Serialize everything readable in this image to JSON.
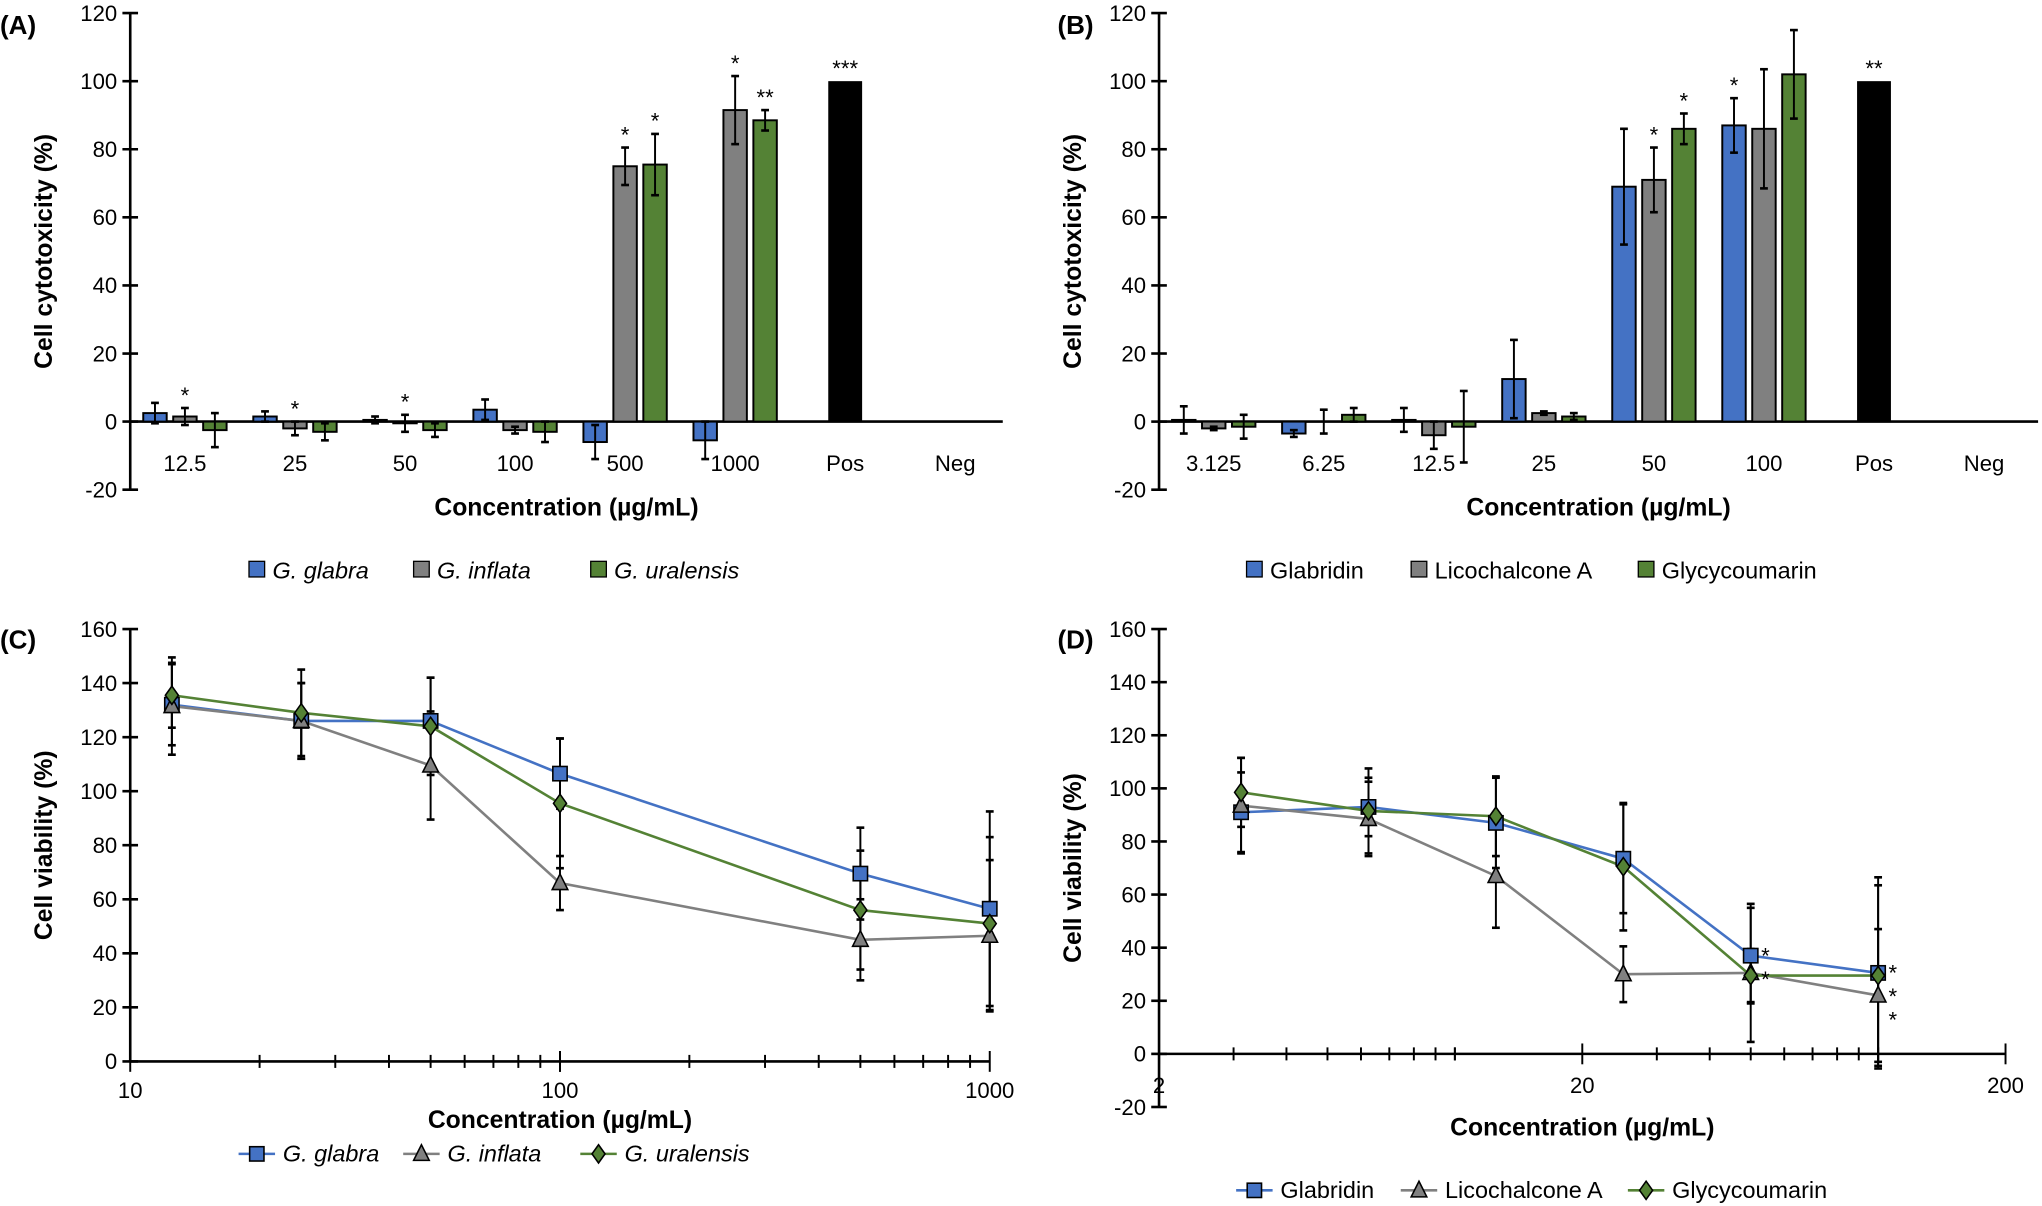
{
  "colors": {
    "blue": "#4472C4",
    "gray": "#808080",
    "green": "#548235",
    "black": "#000000"
  },
  "chart_data": [
    {
      "panel": "(A)",
      "type": "bar",
      "ylabel": "Cell cytotoxicity (%)",
      "xlabel": "Concentration (µg/mL)",
      "ylim": [
        -20,
        120
      ],
      "yticks": [
        -20,
        0,
        20,
        40,
        60,
        80,
        100,
        120
      ],
      "categories": [
        "12.5",
        "25",
        "50",
        "100",
        "500",
        "1000",
        "Pos",
        "Neg"
      ],
      "series": [
        {
          "name": "G. glabra",
          "italic": true,
          "color": "#4472C4",
          "values": [
            2.5,
            1.5,
            0.5,
            3.5,
            -6,
            -5.5,
            null,
            null
          ],
          "errors": [
            3,
            1.5,
            1,
            3,
            5,
            5.5,
            null,
            null
          ],
          "stars": [
            "",
            "",
            "",
            "",
            "",
            "",
            "",
            ""
          ]
        },
        {
          "name": "G. inflata",
          "italic": true,
          "color": "#808080",
          "values": [
            1.5,
            -2,
            -0.5,
            -2.5,
            75,
            91.5,
            null,
            null
          ],
          "errors": [
            2.5,
            2,
            2.5,
            1,
            5.5,
            10,
            null,
            null
          ],
          "stars": [
            "*",
            "*",
            "*",
            "",
            "*",
            "*",
            "",
            ""
          ]
        },
        {
          "name": "G. uralensis",
          "italic": true,
          "color": "#548235",
          "values": [
            -2.5,
            -3,
            -2.5,
            -3,
            75.5,
            88.5,
            null,
            null
          ],
          "errors": [
            5,
            2.5,
            2,
            3,
            9,
            3,
            null,
            null
          ],
          "stars": [
            "",
            "",
            "",
            "",
            "*",
            "**",
            "",
            ""
          ]
        }
      ],
      "positive": {
        "value": 100,
        "color": "#000000",
        "stars": "***"
      }
    },
    {
      "panel": "(B)",
      "type": "bar",
      "ylabel": "Cell cytotoxicity (%)",
      "xlabel": "Concentration (µg/mL)",
      "ylim": [
        -20,
        120
      ],
      "yticks": [
        -20,
        0,
        20,
        40,
        60,
        80,
        100,
        120
      ],
      "categories": [
        "3.125",
        "6.25",
        "12.5",
        "25",
        "50",
        "100",
        "Pos",
        "Neg"
      ],
      "series": [
        {
          "name": "Glabridin",
          "italic": false,
          "color": "#4472C4",
          "values": [
            0.5,
            -3.5,
            0.5,
            12.5,
            69,
            87,
            null,
            null
          ],
          "errors": [
            4,
            1,
            3.5,
            11.5,
            17,
            8,
            null,
            null
          ],
          "stars": [
            "",
            "",
            "",
            "",
            "",
            "*",
            "",
            ""
          ]
        },
        {
          "name": "Licochalcone A",
          "italic": false,
          "color": "#808080",
          "values": [
            -2,
            0,
            -4,
            2.5,
            71,
            86,
            null,
            null
          ],
          "errors": [
            0.5,
            3.5,
            4,
            0.5,
            9.5,
            17.5,
            null,
            null
          ],
          "stars": [
            "",
            "",
            "",
            "",
            "*",
            "",
            "",
            ""
          ]
        },
        {
          "name": "Glycycoumarin",
          "italic": false,
          "color": "#548235",
          "values": [
            -1.5,
            2,
            -1.5,
            1.5,
            86,
            102,
            null,
            null
          ],
          "errors": [
            3.5,
            2,
            10.5,
            1,
            4.5,
            13,
            null,
            null
          ],
          "stars": [
            "",
            "",
            "",
            "",
            "*",
            "",
            "",
            ""
          ]
        }
      ],
      "positive": {
        "value": 100,
        "color": "#000000",
        "stars": "**"
      }
    },
    {
      "panel": "(C)",
      "type": "line",
      "xscale": "log",
      "ylabel": "Cell viability (%)",
      "xlabel": "Concentration (µg/mL)",
      "xlim": [
        10,
        1000
      ],
      "xticks": [
        "10",
        "100",
        "1000"
      ],
      "ylim": [
        0,
        160
      ],
      "yticks": [
        0,
        20,
        40,
        60,
        80,
        100,
        120,
        140,
        160
      ],
      "x": [
        12.5,
        25,
        50,
        100,
        500,
        1000
      ],
      "series": [
        {
          "name": "G. glabra",
          "italic": true,
          "color": "#4472C4",
          "marker": "square",
          "values": [
            132,
            126,
            126,
            106.5,
            69.5,
            56.5
          ],
          "errors": [
            15,
            14,
            16,
            13,
            17,
            36
          ],
          "stars": [
            "",
            "",
            "",
            "",
            "",
            ""
          ]
        },
        {
          "name": "G. inflata",
          "italic": true,
          "color": "#808080",
          "marker": "triangle",
          "values": [
            131.5,
            126,
            109.5,
            66,
            45,
            46.5
          ],
          "errors": [
            18,
            14,
            20,
            10,
            15,
            28
          ],
          "stars": [
            "",
            "",
            "",
            "",
            "",
            ""
          ]
        },
        {
          "name": "G. uralensis",
          "italic": true,
          "color": "#548235",
          "marker": "diamond",
          "values": [
            135.5,
            129,
            124,
            95.5,
            56,
            51
          ],
          "errors": [
            12,
            16,
            18,
            24,
            22,
            32
          ],
          "stars": [
            "",
            "",
            "",
            "",
            "",
            ""
          ]
        }
      ]
    },
    {
      "panel": "(D)",
      "type": "line",
      "xscale": "log",
      "ylabel": "Cell viability (%)",
      "xlabel": "Concentration (µg/mL)",
      "xlim": [
        2,
        200
      ],
      "xticks": [
        "2",
        "20",
        "200"
      ],
      "ylim": [
        -20,
        160
      ],
      "yticks": [
        -20,
        0,
        20,
        40,
        60,
        80,
        100,
        120,
        140,
        160
      ],
      "x": [
        3.125,
        6.25,
        12.5,
        25,
        50,
        100
      ],
      "series": [
        {
          "name": "Glabridin",
          "italic": false,
          "color": "#4472C4",
          "marker": "square",
          "values": [
            91,
            93,
            87,
            73.5,
            37,
            30.5
          ],
          "errors": [
            15,
            11,
            17,
            20.5,
            18,
            36
          ],
          "stars": [
            "",
            "",
            "",
            "",
            "*",
            "*"
          ]
        },
        {
          "name": "Licochalcone A",
          "italic": false,
          "color": "#808080",
          "marker": "triangle",
          "values": [
            93.5,
            88.5,
            67,
            30,
            30.5,
            22
          ],
          "errors": [
            18,
            14,
            19.5,
            10.5,
            26,
            25
          ],
          "stars": [
            "",
            "",
            "",
            "",
            "",
            "*"
          ]
        },
        {
          "name": "Glycycoumarin",
          "italic": false,
          "color": "#548235",
          "marker": "diamond",
          "values": [
            98.5,
            91.5,
            89.5,
            70.5,
            29.5,
            29.5
          ],
          "errors": [
            13,
            16,
            15,
            24,
            10,
            34
          ],
          "stars": [
            "",
            "",
            "",
            "",
            "*",
            "*"
          ]
        }
      ]
    }
  ]
}
